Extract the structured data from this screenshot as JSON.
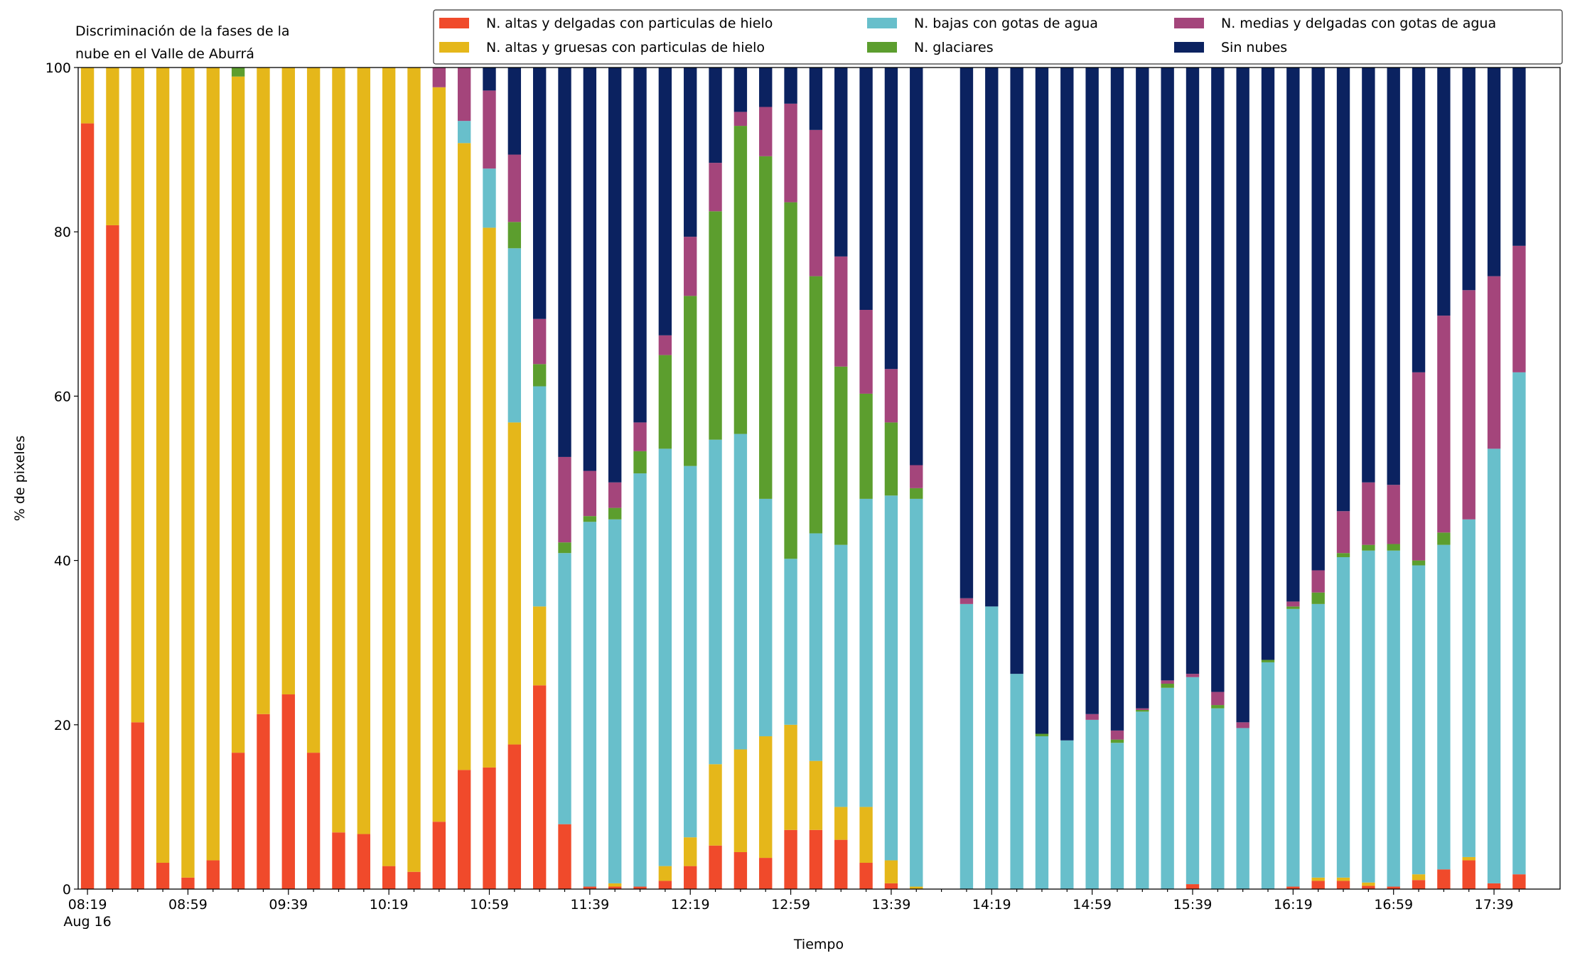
{
  "chart_data": {
    "type": "stacked_bar",
    "title": [
      "Discriminación de la fases de la",
      "nube en el Valle de Aburrá"
    ],
    "x_label": "Tiempo",
    "y_label": "% de pixeles",
    "date_label": "Aug 16",
    "categories": [
      "08:19",
      null,
      null,
      null,
      "08:59",
      null,
      null,
      null,
      "09:39",
      null,
      null,
      null,
      "10:19",
      null,
      null,
      null,
      "10:59",
      null,
      null,
      null,
      "11:39",
      null,
      null,
      null,
      "12:19",
      null,
      null,
      null,
      "12:59",
      null,
      null,
      null,
      "13:39",
      null,
      null,
      null,
      "14:19",
      null,
      null,
      null,
      "14:59",
      null,
      null,
      null,
      "15:39",
      null,
      null,
      null,
      "16:19",
      null,
      null,
      null,
      "16:59",
      null,
      null,
      null,
      "17:39",
      null
    ],
    "ylim": [
      0,
      100
    ],
    "yticks": [
      0,
      20,
      40,
      60,
      80,
      100
    ],
    "legend": "top-right",
    "series": [
      {
        "name": "N. altas y delgadas con particulas de hielo",
        "color": "#f04a2b",
        "values": [
          93.2,
          80.8,
          20.3,
          3.2,
          1.4,
          3.5,
          16.6,
          21.3,
          23.7,
          16.6,
          6.9,
          6.7,
          2.8,
          2.1,
          8.2,
          14.5,
          14.8,
          17.6,
          24.8,
          7.9,
          0.3,
          0.3,
          0.3,
          1.0,
          2.8,
          5.3,
          4.5,
          3.8,
          7.2,
          7.2,
          6.0,
          3.2,
          0.7,
          0,
          null,
          0,
          0,
          0,
          0,
          0,
          0,
          0,
          0,
          0,
          0.6,
          0,
          0,
          0,
          0.3,
          1.0,
          1.0,
          0.4,
          0.3,
          1.1,
          2.4,
          3.5,
          0.7,
          1.8
        ]
      },
      {
        "name": "N. altas y gruesas con particulas de hielo",
        "color": "#e5b71a",
        "values": [
          6.8,
          19.2,
          79.7,
          96.8,
          98.6,
          96.5,
          82.3,
          78.7,
          76.3,
          83.4,
          93.1,
          93.3,
          97.2,
          97.9,
          89.4,
          76.3,
          65.7,
          39.2,
          9.6,
          0,
          0,
          0.4,
          0,
          1.8,
          3.5,
          9.9,
          12.5,
          14.8,
          12.8,
          8.4,
          4.0,
          6.8,
          2.8,
          0.3,
          null,
          0,
          0,
          0,
          0,
          0,
          0,
          0,
          0,
          0,
          0,
          0,
          0,
          0,
          0,
          0.4,
          0.4,
          0.4,
          0,
          0.7,
          0,
          0.4,
          0,
          0
        ]
      },
      {
        "name": "N. bajas con gotas de agua",
        "color": "#68bfcb",
        "values": [
          0,
          0,
          0,
          0,
          0,
          0,
          0,
          0,
          0,
          0,
          0,
          0,
          0,
          0,
          0,
          2.7,
          7.2,
          21.2,
          26.8,
          33.0,
          44.4,
          44.3,
          50.3,
          50.8,
          45.2,
          39.5,
          38.4,
          28.9,
          20.2,
          27.7,
          31.9,
          37.5,
          44.4,
          47.2,
          null,
          34.7,
          34.4,
          26.2,
          18.6,
          18.1,
          20.6,
          17.8,
          21.6,
          24.5,
          25.2,
          22.0,
          19.6,
          27.6,
          33.8,
          33.3,
          39.0,
          40.4,
          40.9,
          37.6,
          39.5,
          41.1,
          52.9,
          61.1
        ]
      },
      {
        "name": "N. glaciares",
        "color": "#5c9e2e",
        "values": [
          0,
          0,
          0,
          0,
          0,
          0,
          1.1,
          0,
          0,
          0,
          0,
          0,
          0,
          0,
          0,
          0,
          0,
          3.2,
          2.7,
          1.3,
          0.7,
          1.4,
          2.7,
          11.4,
          20.7,
          27.8,
          37.5,
          41.7,
          43.4,
          31.3,
          21.7,
          12.8,
          8.9,
          1.3,
          null,
          0,
          0,
          0,
          0.3,
          0,
          0,
          0.4,
          0.2,
          0.5,
          0,
          0.4,
          0,
          0.3,
          0.3,
          1.4,
          0.5,
          0.7,
          0.8,
          0.6,
          1.5,
          0,
          0,
          0
        ]
      },
      {
        "name": "N. medias y delgadas con gotas de agua",
        "color": "#a4457b",
        "values": [
          0,
          0,
          0,
          0,
          0,
          0,
          0,
          0,
          0,
          0,
          0,
          0,
          0,
          0,
          2.4,
          6.5,
          9.5,
          8.2,
          5.5,
          10.4,
          5.5,
          3.1,
          3.5,
          2.4,
          7.2,
          5.9,
          1.7,
          6.0,
          12.0,
          17.8,
          13.4,
          10.2,
          6.5,
          2.8,
          null,
          0.7,
          0,
          0,
          0,
          0,
          0.7,
          1.1,
          0.2,
          0.4,
          0.4,
          1.6,
          0.7,
          0,
          0.6,
          2.7,
          5.1,
          7.6,
          7.2,
          22.9,
          26.4,
          27.9,
          21.0,
          15.4
        ]
      },
      {
        "name": "Sin nubes",
        "color": "#0b2260",
        "values": [
          0,
          0,
          0,
          0,
          0,
          0,
          0,
          0,
          0,
          0,
          0,
          0,
          0,
          0,
          0,
          0,
          2.8,
          10.6,
          30.6,
          47.4,
          49.1,
          50.5,
          43.2,
          32.6,
          20.6,
          11.6,
          5.4,
          4.8,
          4.4,
          7.6,
          23.0,
          29.5,
          36.7,
          48.4,
          null,
          64.6,
          65.6,
          73.8,
          81.1,
          81.9,
          78.7,
          80.7,
          78.0,
          74.6,
          73.8,
          76.0,
          79.7,
          72.1,
          65.0,
          61.2,
          54.0,
          50.5,
          50.8,
          37.1,
          30.2,
          27.1,
          25.4,
          21.7
        ]
      }
    ]
  }
}
